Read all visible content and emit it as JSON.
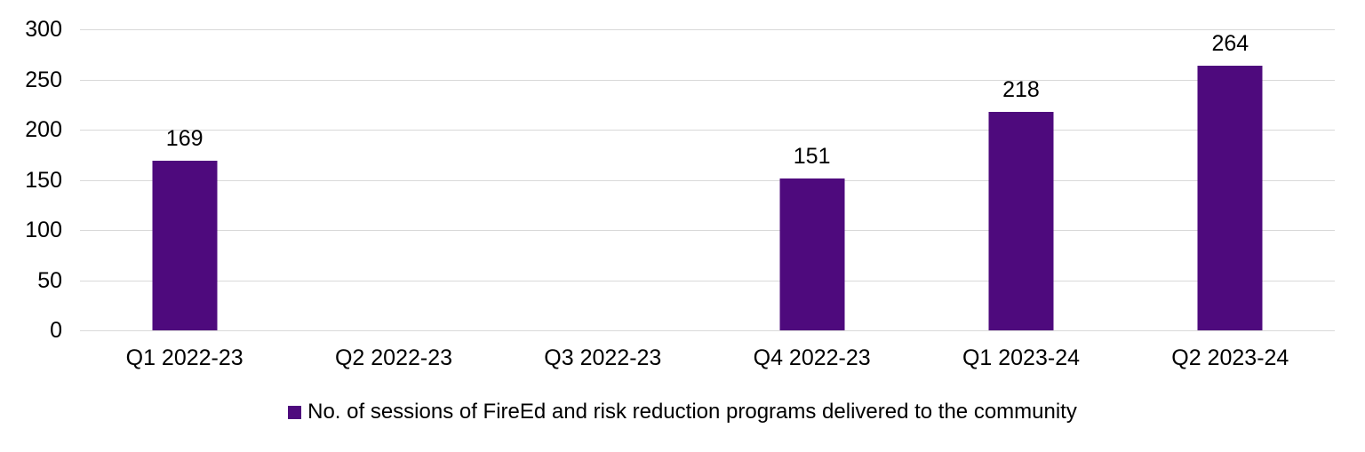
{
  "chart_data": {
    "type": "bar",
    "categories": [
      "Q1 2022-23",
      "Q2 2022-23",
      "Q3 2022-23",
      "Q4 2022-23",
      "Q1 2023-24",
      "Q2 2023-24"
    ],
    "series": [
      {
        "name": "No. of sessions of FireEd and risk reduction programs delivered to the community",
        "values": [
          169,
          null,
          null,
          151,
          218,
          264
        ]
      }
    ],
    "title": "",
    "xlabel": "",
    "ylabel": "",
    "ylim": [
      0,
      300
    ],
    "yticks": [
      0,
      50,
      100,
      150,
      200,
      250,
      300
    ],
    "grid": true,
    "legend_position": "bottom",
    "data_labels_shown": true
  },
  "colors": {
    "bar": "#4E0A7D",
    "gridline": "#d9d9d9",
    "text": "#000000",
    "background": "#ffffff"
  },
  "legend": {
    "label": "No. of sessions of FireEd and risk reduction programs delivered to the community"
  }
}
